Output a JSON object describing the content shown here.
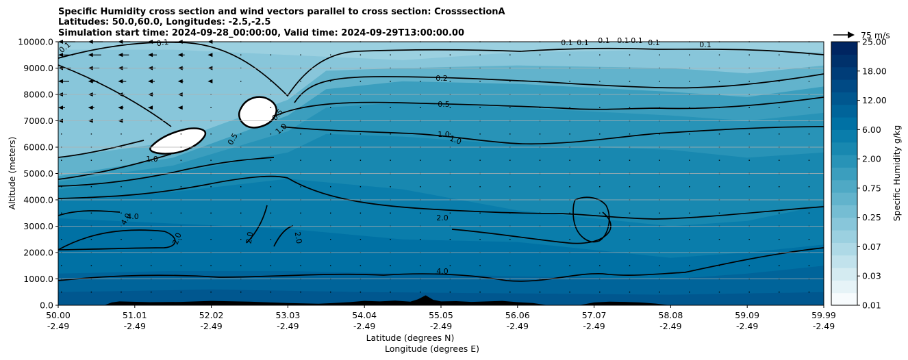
{
  "chart_data": {
    "type": "heatmap",
    "title_lines": [
      "Specific Humidity cross section and wind vectors parallel to cross section: CrosssectionA",
      "Latitudes: 50.0,60.0, Longitudes: -2.5,-2.5",
      "Simulation start time: 2024-09-28_00:00:00, Valid time: 2024-09-29T13:00:00.00"
    ],
    "ylabel": "Altitude (meters)",
    "xlabel_lines": [
      "Latitude (degrees N)",
      "Longitude (degrees E)"
    ],
    "y_ticks": [
      "0.0",
      "1000.0",
      "2000.0",
      "3000.0",
      "4000.0",
      "5000.0",
      "6000.0",
      "7000.0",
      "8000.0",
      "9000.0",
      "10000.0"
    ],
    "y_range": [
      0,
      10000
    ],
    "x_ticks": [
      {
        "lat": "50.00",
        "lon": "-2.49"
      },
      {
        "lat": "51.01",
        "lon": "-2.49"
      },
      {
        "lat": "52.02",
        "lon": "-2.49"
      },
      {
        "lat": "53.03",
        "lon": "-2.49"
      },
      {
        "lat": "54.04",
        "lon": "-2.49"
      },
      {
        "lat": "55.05",
        "lon": "-2.49"
      },
      {
        "lat": "56.06",
        "lon": "-2.49"
      },
      {
        "lat": "57.07",
        "lon": "-2.49"
      },
      {
        "lat": "58.08",
        "lon": "-2.49"
      },
      {
        "lat": "59.09",
        "lon": "-2.49"
      },
      {
        "lat": "59.99",
        "lon": "-2.49"
      }
    ],
    "x_range": [
      50.0,
      59.99
    ],
    "grid": "horizontal",
    "colorbar": {
      "label": "Specific Humidity g/kg",
      "levels": [
        0.01,
        0.02,
        0.03,
        0.05,
        0.07,
        0.1,
        0.25,
        0.3,
        0.5,
        0.75,
        1.0,
        1.5,
        2.0,
        3.0,
        5.0,
        6.0,
        8.0,
        12.0,
        15.0,
        18.0,
        20.0,
        25.0
      ],
      "tick_labels": [
        "0.01",
        "0.03",
        "0.07",
        "0.25",
        "0.75",
        "2.00",
        "6.00",
        "12.00",
        "18.00",
        "25.00"
      ],
      "colors": [
        "#f7fbfd",
        "#e6f3f7",
        "#d4ebf1",
        "#c1e2ec",
        "#aed9e6",
        "#9bd0e0",
        "#88c6da",
        "#75bdd3",
        "#62b3cc",
        "#4fa9c5",
        "#3b9ebe",
        "#2893b7",
        "#1888b0",
        "#0a7dab",
        "#0071a4",
        "#00649a",
        "#00578f",
        "#004a85",
        "#003d78",
        "#00316b",
        "#002561"
      ]
    },
    "wind_key": {
      "label": "75 m/s"
    },
    "contour_labels": [
      "0.1",
      "0.1",
      "0.1",
      "0.1",
      "0.1",
      "0.1",
      "0.1",
      "0.1",
      "0.1",
      "0.2",
      "0.5",
      "0.5",
      "0.5",
      "1.0",
      "1.0",
      "1.0",
      "1.0",
      "2.0",
      "2.0",
      "2.0",
      "2.0",
      "4.0",
      "4.0",
      "4.0"
    ]
  }
}
